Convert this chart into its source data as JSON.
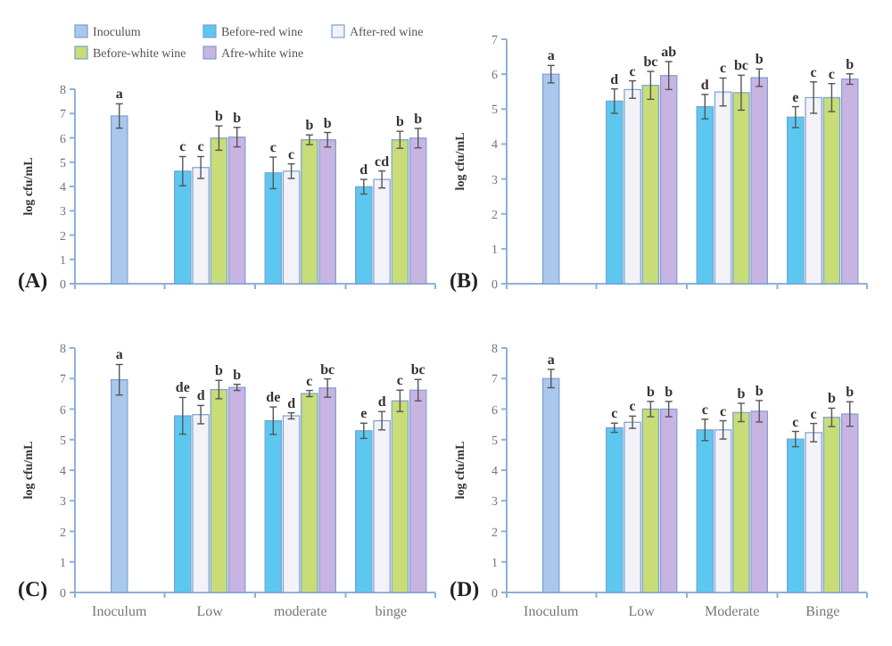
{
  "chart_data": [
    {
      "type": "bar",
      "title": "(A)",
      "ylabel": "log cfu/mL",
      "categories": [
        null,
        null,
        null,
        null
      ],
      "ylim": [
        0,
        8
      ],
      "yticks": [
        0,
        1,
        2,
        3,
        4,
        5,
        6,
        7,
        8
      ],
      "legend": "top right",
      "series": [
        {
          "name": "Inoculum",
          "color": "#a9c8ec",
          "values": [
            6.9,
            null,
            null,
            null
          ],
          "errors": [
            0.5,
            null,
            null,
            null
          ],
          "value_labels": [
            "a",
            null,
            null,
            null
          ]
        },
        {
          "name": "Before-red wine",
          "color": "#5cc8f0",
          "values": [
            null,
            4.63,
            4.56,
            3.99
          ],
          "errors": [
            null,
            0.6,
            0.65,
            0.3
          ],
          "value_labels": [
            null,
            "c",
            "c",
            "d"
          ]
        },
        {
          "name": "After-red wine",
          "color": "#f2f2f8",
          "values": [
            null,
            4.78,
            4.63,
            4.29
          ],
          "errors": [
            null,
            0.45,
            0.3,
            0.35
          ],
          "value_labels": [
            null,
            "c",
            "c",
            "cd"
          ]
        },
        {
          "name": "Before-white wine",
          "color": "#c8dc78",
          "values": [
            null,
            5.99,
            5.92,
            5.92
          ],
          "errors": [
            null,
            0.5,
            0.2,
            0.35
          ],
          "value_labels": [
            null,
            "b",
            "b",
            "b"
          ]
        },
        {
          "name": "Afre-white wine",
          "color": "#c8b4e2",
          "values": [
            null,
            6.03,
            5.92,
            5.99
          ],
          "errors": [
            null,
            0.4,
            0.3,
            0.4
          ],
          "value_labels": [
            null,
            "b",
            "b",
            "b"
          ]
        }
      ]
    },
    {
      "type": "bar",
      "title": "(B)",
      "ylabel": "log cfu/mL",
      "categories": [
        null,
        null,
        null,
        null
      ],
      "ylim": [
        0,
        7
      ],
      "yticks": [
        0,
        1,
        2,
        3,
        4,
        5,
        6,
        7
      ],
      "series": [
        {
          "color": "#a9c8ec",
          "values": [
            6.0,
            null,
            null,
            null
          ],
          "errors": [
            0.25,
            null,
            null,
            null
          ],
          "value_labels": [
            "a",
            null,
            null,
            null
          ]
        },
        {
          "color": "#5cc8f0",
          "values": [
            null,
            5.23,
            5.07,
            4.77
          ],
          "errors": [
            null,
            0.35,
            0.35,
            0.3
          ],
          "value_labels": [
            null,
            "d",
            "d",
            "e"
          ]
        },
        {
          "color": "#f2f2f8",
          "values": [
            null,
            5.56,
            5.49,
            5.33
          ],
          "errors": [
            null,
            0.25,
            0.4,
            0.45
          ],
          "value_labels": [
            null,
            "c",
            "c",
            "c"
          ]
        },
        {
          "color": "#c8dc78",
          "values": [
            null,
            5.68,
            5.47,
            5.33
          ],
          "errors": [
            null,
            0.4,
            0.5,
            0.4
          ],
          "value_labels": [
            null,
            "bc",
            "bc",
            "c"
          ]
        },
        {
          "color": "#c8b4e2",
          "values": [
            null,
            5.96,
            5.9,
            5.86
          ],
          "errors": [
            null,
            0.4,
            0.25,
            0.15
          ],
          "value_labels": [
            null,
            "ab",
            "b",
            "b"
          ]
        }
      ]
    },
    {
      "type": "bar",
      "title": "(C)",
      "ylabel": "log cfu/mL",
      "categories": [
        "Inoculum",
        "Low",
        "moderate",
        "binge"
      ],
      "ylim": [
        0,
        8
      ],
      "yticks": [
        0,
        1,
        2,
        3,
        4,
        5,
        6,
        7,
        8
      ],
      "series": [
        {
          "color": "#a9c8ec",
          "values": [
            6.96,
            null,
            null,
            null
          ],
          "errors": [
            0.5,
            null,
            null,
            null
          ],
          "value_labels": [
            "a",
            null,
            null,
            null
          ]
        },
        {
          "color": "#5cc8f0",
          "values": [
            null,
            5.78,
            5.62,
            5.29
          ],
          "errors": [
            null,
            0.6,
            0.45,
            0.25
          ],
          "value_labels": [
            null,
            "de",
            "de",
            "e"
          ]
        },
        {
          "color": "#f2f2f8",
          "values": [
            null,
            5.82,
            5.78,
            5.62
          ],
          "errors": [
            null,
            0.3,
            0.1,
            0.3
          ],
          "value_labels": [
            null,
            "d",
            "d",
            "d"
          ]
        },
        {
          "color": "#c8dc78",
          "values": [
            null,
            6.64,
            6.51,
            6.27
          ],
          "errors": [
            null,
            0.3,
            0.1,
            0.35
          ],
          "value_labels": [
            null,
            "b",
            "c",
            "c"
          ]
        },
        {
          "color": "#c8b4e2",
          "values": [
            null,
            6.71,
            6.69,
            6.62
          ],
          "errors": [
            null,
            0.1,
            0.3,
            0.35
          ],
          "value_labels": [
            null,
            "b",
            "bc",
            "bc"
          ]
        }
      ]
    },
    {
      "type": "bar",
      "title": "(D)",
      "ylabel": "log cfu/mL",
      "categories": [
        "Inoculum",
        "Low",
        "Moderate",
        "Binge"
      ],
      "ylim": [
        0,
        8
      ],
      "yticks": [
        0,
        1,
        2,
        3,
        4,
        5,
        6,
        7,
        8
      ],
      "series": [
        {
          "color": "#a9c8ec",
          "values": [
            7.0,
            null,
            null,
            null
          ],
          "errors": [
            0.3,
            null,
            null,
            null
          ],
          "value_labels": [
            "a",
            null,
            null,
            null
          ]
        },
        {
          "color": "#5cc8f0",
          "values": [
            null,
            5.39,
            5.32,
            5.02
          ],
          "errors": [
            null,
            0.15,
            0.35,
            0.25
          ],
          "value_labels": [
            null,
            "c",
            "c",
            "c"
          ]
        },
        {
          "color": "#f2f2f8",
          "values": [
            null,
            5.57,
            5.32,
            5.23
          ],
          "errors": [
            null,
            0.2,
            0.3,
            0.3
          ],
          "value_labels": [
            null,
            "c",
            "c",
            "c"
          ]
        },
        {
          "color": "#c8dc78",
          "values": [
            null,
            6.0,
            5.89,
            5.73
          ],
          "errors": [
            null,
            0.25,
            0.3,
            0.3
          ],
          "value_labels": [
            null,
            "b",
            "b",
            "b"
          ]
        },
        {
          "color": "#c8b4e2",
          "values": [
            null,
            6.0,
            5.93,
            5.84
          ],
          "errors": [
            null,
            0.25,
            0.35,
            0.4
          ],
          "value_labels": [
            null,
            "b",
            "b",
            "b"
          ]
        }
      ]
    }
  ]
}
